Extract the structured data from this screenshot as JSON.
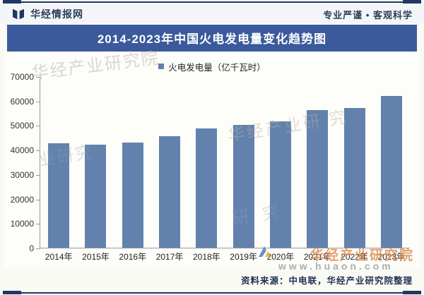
{
  "header": {
    "brand": "华经情报网",
    "tagline": "专业严谨 • 客观科学"
  },
  "title": "2014-2023年中国火电发电量变化趋势图",
  "legend": {
    "label": "火电发电量（亿千瓦时）"
  },
  "chart_data": {
    "type": "bar",
    "title": "2014-2023年中国火电发电量变化趋势图",
    "categories": [
      "2014年",
      "2015年",
      "2016年",
      "2017年",
      "2018年",
      "2019年",
      "2020年",
      "2021年",
      "2022年",
      "2023年"
    ],
    "values": [
      42800,
      42100,
      43200,
      45700,
      48900,
      50200,
      51700,
      56500,
      57200,
      62100
    ],
    "unit": "亿千瓦时",
    "legend_entries": [
      "火电发电量（亿千瓦时）"
    ],
    "xlabel": "",
    "ylabel": "",
    "ylim": [
      0,
      70000
    ],
    "ytick_step": 10000,
    "bar_color": "#6381ad",
    "grid": false,
    "legend_position": "top-center"
  },
  "watermarks": {
    "diagonal_top_left": "华经产业研究院",
    "diagonal_left_mid": "业研究",
    "diagonal_center": "华经产业研 究",
    "diagonal_center_low": "研 究",
    "brand_bottom": "华经产业研究院",
    "website": "www.huaon.com"
  },
  "footer": {
    "source": "资料来源：中电联，华经产业研究院整理"
  },
  "colors": {
    "bar": "#6381ad",
    "banner": "#3a5a9c",
    "rule": "#203864"
  }
}
